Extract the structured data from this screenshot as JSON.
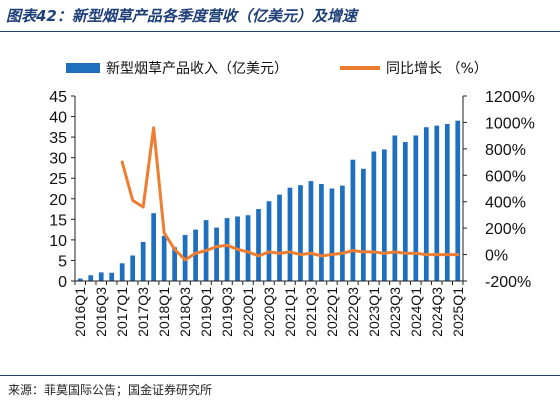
{
  "figure": {
    "title": "图表42：新型烟草产品各季度营收（亿美元）及增速",
    "source": "来源：菲莫国际公告；国金证券研究所"
  },
  "colors": {
    "bar": "#1f6fbf",
    "line": "#ed7d31",
    "title": "#1f3f78",
    "axis": "#222222"
  },
  "chart_data": {
    "type": "bar",
    "categories": [
      "2016Q1",
      "2016Q2",
      "2016Q3",
      "2016Q4",
      "2017Q1",
      "2017Q2",
      "2017Q3",
      "2017Q4",
      "2018Q1",
      "2018Q2",
      "2018Q3",
      "2018Q4",
      "2019Q1",
      "2019Q2",
      "2019Q3",
      "2019Q4",
      "2020Q1",
      "2020Q2",
      "2020Q3",
      "2020Q4",
      "2021Q1",
      "2021Q2",
      "2021Q3",
      "2021Q4",
      "2022Q1",
      "2022Q2",
      "2022Q3",
      "2022Q4",
      "2023Q1",
      "2023Q2",
      "2023Q3",
      "2023Q4",
      "2024Q1",
      "2024Q2",
      "2024Q3",
      "2024Q4",
      "2025Q1"
    ],
    "x_tick_labels": [
      "2016Q1",
      "2016Q3",
      "2017Q1",
      "2017Q3",
      "2018Q1",
      "2018Q3",
      "2019Q1",
      "2019Q3",
      "2020Q1",
      "2020Q3",
      "2021Q1",
      "2021Q3",
      "2022Q1",
      "2022Q3",
      "2023Q1",
      "2023Q3",
      "2024Q1",
      "2024Q3",
      "2025Q1"
    ],
    "series": [
      {
        "name": "新型烟草产品收入（亿美元）",
        "type": "bar",
        "axis": "left",
        "values": [
          0.6,
          1.4,
          2.1,
          2.0,
          4.3,
          6.2,
          9.5,
          16.5,
          11.0,
          8.2,
          11.2,
          12.5,
          14.8,
          13.0,
          15.3,
          15.7,
          16.0,
          17.5,
          19.4,
          21.0,
          22.7,
          23.3,
          24.3,
          23.6,
          22.5,
          23.2,
          29.5,
          27.3,
          31.5,
          32.0,
          35.4,
          33.8,
          35.4,
          37.4,
          37.8,
          38.2,
          39.0
        ]
      },
      {
        "name": "同比增长 （%）",
        "type": "line",
        "axis": "right",
        "values": [
          null,
          null,
          null,
          null,
          700,
          410,
          360,
          960,
          165,
          40,
          -40,
          10,
          30,
          60,
          70,
          40,
          20,
          -10,
          20,
          10,
          20,
          0,
          10,
          -10,
          0,
          10,
          30,
          20,
          20,
          10,
          20,
          10,
          10,
          0,
          0,
          0,
          0
        ]
      }
    ],
    "y_left": {
      "min": 0,
      "max": 45,
      "ticks": [
        0,
        5,
        10,
        15,
        20,
        25,
        30,
        35,
        40,
        45
      ]
    },
    "y_right": {
      "min": -200,
      "max": 1200,
      "ticks": [
        "-200%",
        "0%",
        "200%",
        "400%",
        "600%",
        "800%",
        "1000%",
        "1200%"
      ]
    },
    "legend_position": "top",
    "grid": false
  }
}
